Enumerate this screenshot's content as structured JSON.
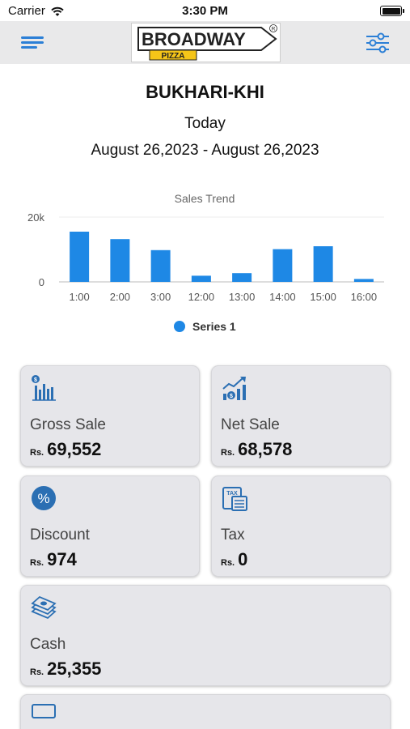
{
  "status_bar": {
    "carrier": "Carrier",
    "time": "3:30 PM"
  },
  "header": {
    "logo": {
      "brand": "BROADWAY",
      "sub": "PIZZA",
      "mark": "R"
    }
  },
  "report": {
    "branch": "BUKHARI-KHI",
    "period": "Today",
    "date_range": "August 26,2023 - August 26,2023"
  },
  "chart_data": {
    "type": "bar",
    "title": "Sales Trend",
    "categories": [
      "1:00",
      "2:00",
      "3:00",
      "12:00",
      "13:00",
      "14:00",
      "15:00",
      "16:00"
    ],
    "series": [
      {
        "name": "Series 1",
        "values": [
          15500,
          13200,
          9800,
          1900,
          2700,
          10100,
          11000,
          900
        ]
      }
    ],
    "y_ticks": [
      "0",
      "20k"
    ],
    "ylim": [
      0,
      20000
    ],
    "legend": "bottom-center",
    "colors": {
      "bar": "#1e88e5"
    }
  },
  "cards": [
    {
      "label": "Gross Sale",
      "currency": "Rs.",
      "value": "69,552",
      "icon": "sales-chart-icon"
    },
    {
      "label": "Net Sale",
      "currency": "Rs.",
      "value": "68,578",
      "icon": "growth-chart-icon"
    },
    {
      "label": "Discount",
      "currency": "Rs.",
      "value": "974",
      "icon": "percent-icon"
    },
    {
      "label": "Tax",
      "currency": "Rs.",
      "value": "0",
      "icon": "tax-document-icon"
    },
    {
      "label": "Cash",
      "currency": "Rs.",
      "value": "25,355",
      "icon": "cash-stack-icon"
    }
  ],
  "colors": {
    "accent": "#2b7fd6",
    "nav_bg": "#e9e9ea",
    "card_bg": "#e6e6ea"
  }
}
